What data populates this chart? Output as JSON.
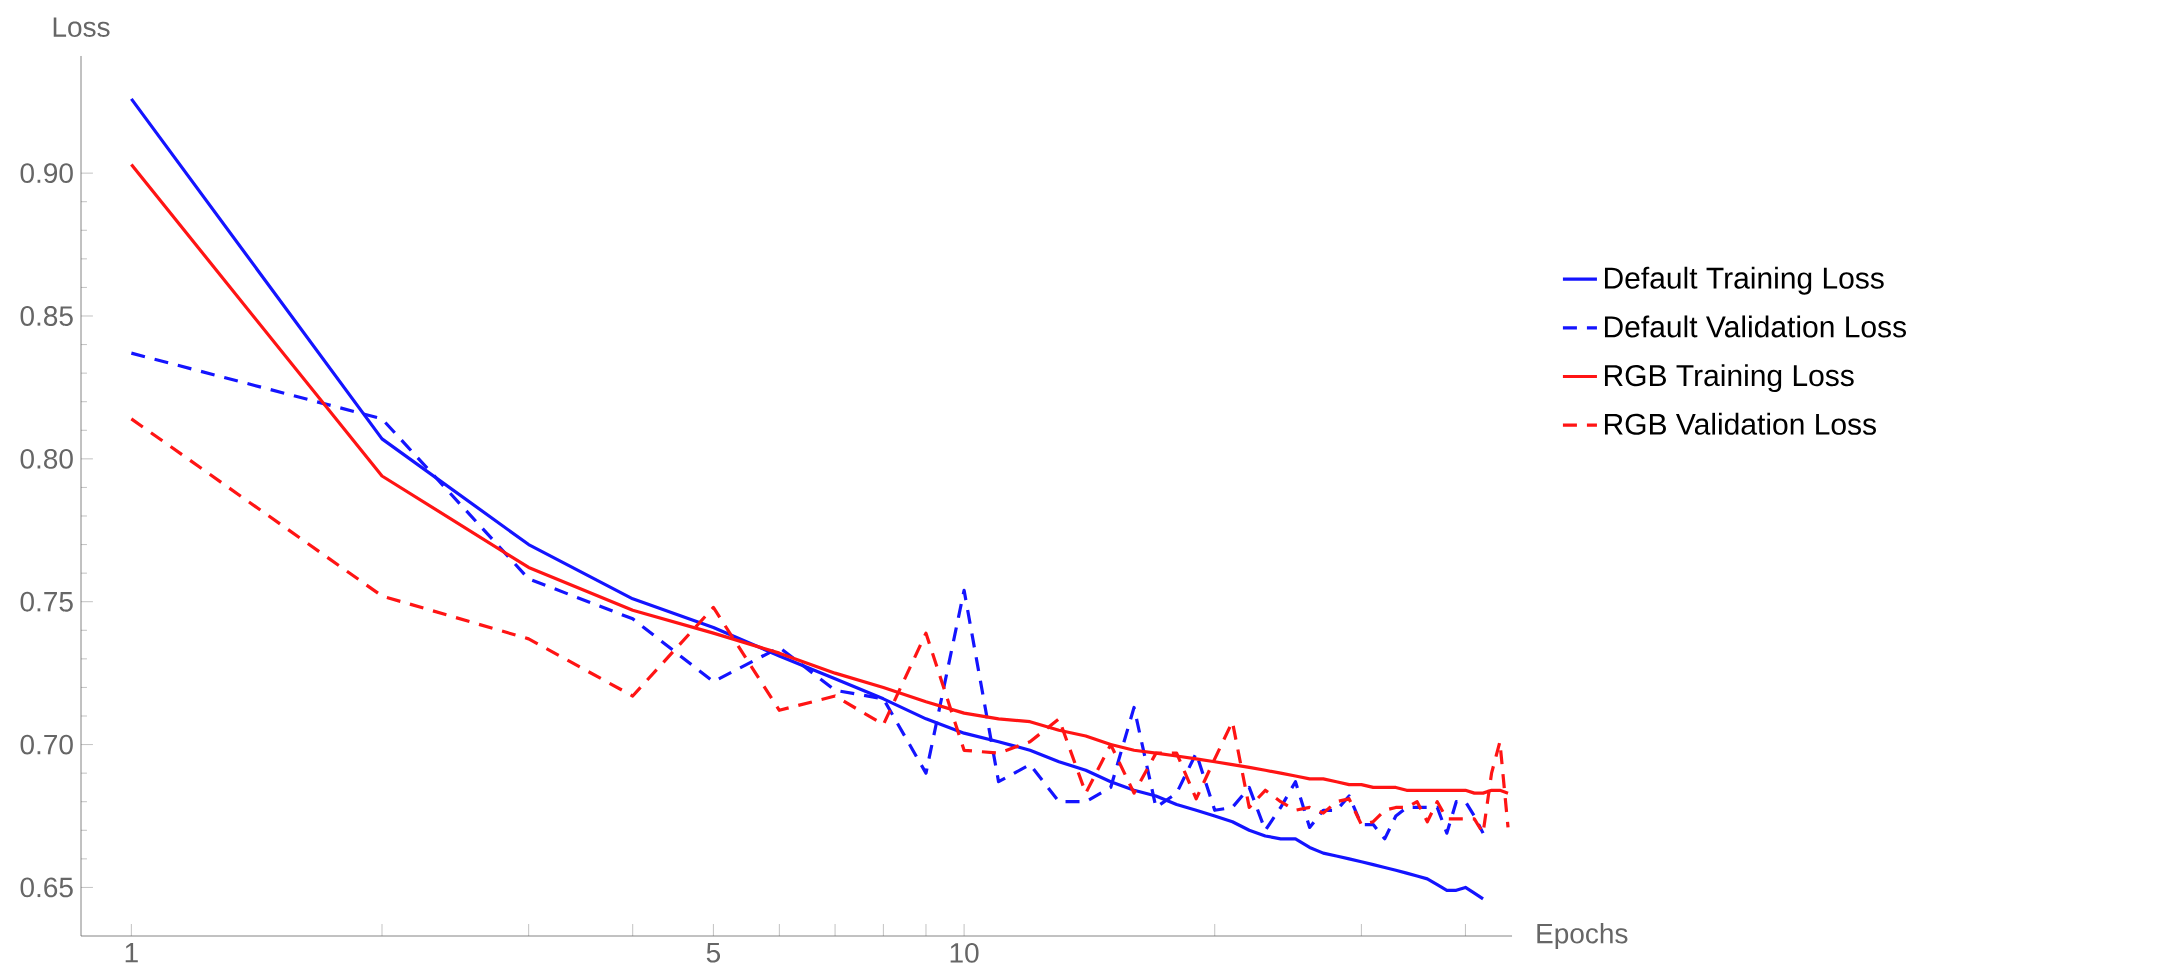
{
  "chart_data": {
    "type": "line",
    "xlabel": "Epochs",
    "ylabel": "Loss",
    "log": "x",
    "xlim": [
      0.87,
      45.5
    ],
    "ylim": [
      0.633,
      0.941
    ],
    "xticks": [
      1,
      {
        "value": 2,
        "label": null
      },
      {
        "value": 3,
        "label": null
      },
      {
        "value": 4,
        "label": null
      },
      5,
      {
        "value": 6,
        "label": null
      },
      {
        "value": 7,
        "label": null
      },
      {
        "value": 8,
        "label": null
      },
      {
        "value": 9,
        "label": null
      },
      10,
      {
        "value": 20,
        "label": null
      },
      {
        "value": 30,
        "label": null
      },
      {
        "value": 40,
        "label": null
      }
    ],
    "yticks": [
      0.65,
      {
        "value": 0.7,
        "label": "0.70"
      },
      0.75,
      {
        "value": 0.8,
        "label": "0.80"
      },
      0.85,
      {
        "value": 0.9,
        "label": "0.90"
      }
    ],
    "grid": false,
    "legend": "right",
    "marker": "none",
    "series": [
      {
        "name": "Default Training Loss",
        "color": "#1414ff",
        "line_style": "solid",
        "x": [
          1,
          2,
          3,
          4,
          5,
          6,
          7,
          8,
          9,
          10,
          11,
          12,
          13,
          14,
          15,
          16,
          17,
          18,
          19,
          20,
          21,
          22,
          23,
          24,
          25,
          26,
          27,
          28,
          29,
          30,
          31,
          32,
          33,
          34,
          35,
          36,
          37,
          38,
          39,
          40,
          41,
          42
        ],
        "values": [
          0.926,
          0.807,
          0.77,
          0.751,
          0.741,
          0.731,
          0.723,
          0.716,
          0.709,
          0.704,
          0.701,
          0.698,
          0.694,
          0.691,
          0.687,
          0.684,
          0.682,
          0.679,
          0.677,
          0.675,
          0.673,
          0.67,
          0.668,
          0.667,
          0.667,
          0.664,
          0.662,
          0.661,
          0.66,
          0.659,
          0.658,
          0.657,
          0.656,
          0.655,
          0.654,
          0.653,
          0.651,
          0.649,
          0.649,
          0.65,
          0.648,
          0.646
        ]
      },
      {
        "name": "Default Validation Loss",
        "color": "#1414ff",
        "line_style": "dashed",
        "x": [
          1,
          2,
          3,
          4,
          5,
          6,
          7,
          8,
          9,
          10,
          11,
          12,
          13,
          14,
          15,
          16,
          17,
          18,
          19,
          20,
          21,
          22,
          23,
          24,
          25,
          26,
          27,
          28,
          29,
          30,
          31,
          32,
          33,
          34,
          35,
          36,
          37,
          38,
          39,
          40,
          41,
          42
        ],
        "values": [
          0.837,
          0.814,
          0.758,
          0.744,
          0.722,
          0.734,
          0.719,
          0.716,
          0.69,
          0.754,
          0.687,
          0.693,
          0.68,
          0.68,
          0.685,
          0.713,
          0.678,
          0.683,
          0.697,
          0.677,
          0.678,
          0.685,
          0.67,
          0.678,
          0.687,
          0.671,
          0.677,
          0.677,
          0.682,
          0.672,
          0.672,
          0.667,
          0.675,
          0.678,
          0.678,
          0.678,
          0.678,
          0.669,
          0.68,
          0.68,
          0.675,
          0.669
        ]
      },
      {
        "name": "RGB Training Loss",
        "color": "#ff1414",
        "line_style": "solid",
        "x": [
          1,
          2,
          3,
          4,
          5,
          6,
          7,
          8,
          9,
          10,
          11,
          12,
          13,
          14,
          15,
          16,
          17,
          18,
          19,
          20,
          21,
          22,
          23,
          24,
          25,
          26,
          27,
          28,
          29,
          30,
          31,
          32,
          33,
          34,
          35,
          36,
          37,
          38,
          39,
          40,
          41,
          42,
          43,
          44,
          45
        ],
        "values": [
          0.903,
          0.794,
          0.762,
          0.747,
          0.739,
          0.732,
          0.725,
          0.72,
          0.715,
          0.711,
          0.709,
          0.708,
          0.705,
          0.703,
          0.7,
          0.698,
          0.697,
          0.696,
          0.695,
          0.694,
          0.693,
          0.692,
          0.691,
          0.69,
          0.689,
          0.688,
          0.688,
          0.687,
          0.686,
          0.686,
          0.685,
          0.685,
          0.685,
          0.684,
          0.684,
          0.684,
          0.684,
          0.684,
          0.684,
          0.684,
          0.683,
          0.683,
          0.684,
          0.684,
          0.683
        ]
      },
      {
        "name": "RGB Validation Loss",
        "color": "#ff1414",
        "line_style": "dashed",
        "x": [
          1,
          2,
          3,
          4,
          5,
          6,
          7,
          8,
          9,
          10,
          11,
          12,
          13,
          14,
          15,
          16,
          17,
          18,
          19,
          20,
          21,
          22,
          23,
          24,
          25,
          26,
          27,
          28,
          29,
          30,
          31,
          32,
          33,
          34,
          35,
          36,
          37,
          38,
          39,
          40,
          41,
          42,
          43,
          44,
          45
        ],
        "values": [
          0.814,
          0.752,
          0.737,
          0.717,
          0.748,
          0.712,
          0.717,
          0.707,
          0.739,
          0.698,
          0.697,
          0.701,
          0.709,
          0.683,
          0.7,
          0.683,
          0.697,
          0.697,
          0.681,
          0.695,
          0.708,
          0.678,
          0.684,
          0.68,
          0.677,
          0.678,
          0.676,
          0.68,
          0.681,
          0.672,
          0.673,
          0.677,
          0.678,
          0.678,
          0.68,
          0.673,
          0.68,
          0.674,
          0.674,
          0.674,
          0.674,
          0.669,
          0.69,
          0.701,
          0.671
        ]
      }
    ]
  }
}
